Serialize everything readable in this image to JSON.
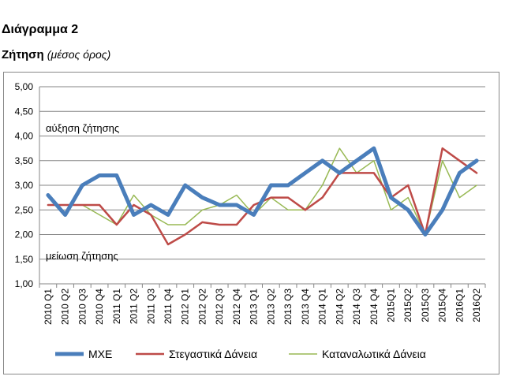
{
  "header": {
    "title": "Διάγραμμα 2",
    "subtitle_main": "Ζήτηση",
    "subtitle_note": "(μέσος όρος)"
  },
  "chart_data": {
    "type": "line",
    "categories": [
      "2010 Q1",
      "2010 Q2",
      "2010 Q3",
      "2010 Q4",
      "2011 Q1",
      "2011 Q2",
      "2011 Q3",
      "2011 Q4",
      "2012 Q1",
      "2012 Q2",
      "2012 Q3",
      "2012 Q4",
      "2013 Q1",
      "2013 Q2",
      "2013 Q3",
      "2013 Q4",
      "2014 Q1",
      "2014 Q2",
      "2014 Q3",
      "2014 Q4",
      "2015Q1",
      "2015Q2",
      "2015Q3",
      "2015Q4",
      "2016Q1",
      "2016Q2"
    ],
    "series": [
      {
        "name": "ΜΧΕ",
        "color": "#4a7ebb",
        "values": [
          2.8,
          2.4,
          3.0,
          3.2,
          3.2,
          2.4,
          2.6,
          2.4,
          3.0,
          2.75,
          2.6,
          2.6,
          2.4,
          3.0,
          3.0,
          3.25,
          3.5,
          3.25,
          3.5,
          3.75,
          2.75,
          2.5,
          2.0,
          2.5,
          3.25,
          3.5
        ]
      },
      {
        "name": "Στεγαστικά Δάνεια",
        "color": "#be4b48",
        "values": [
          2.6,
          2.6,
          2.6,
          2.6,
          2.2,
          2.6,
          2.4,
          1.8,
          2.0,
          2.25,
          2.2,
          2.2,
          2.6,
          2.75,
          2.75,
          2.5,
          2.75,
          3.25,
          3.25,
          3.25,
          2.75,
          3.0,
          2.0,
          3.75,
          3.5,
          3.25
        ]
      },
      {
        "name": "Καταναλωτικά Δάνεια",
        "color": "#98b954",
        "values": [
          2.6,
          2.6,
          2.6,
          2.4,
          2.2,
          2.8,
          2.4,
          2.2,
          2.2,
          2.5,
          2.6,
          2.8,
          2.4,
          2.75,
          2.5,
          2.5,
          3.0,
          3.75,
          3.25,
          3.5,
          2.5,
          2.75,
          2.0,
          3.5,
          2.75,
          3.0
        ]
      }
    ],
    "yticks": [
      "5,00",
      "4,50",
      "4,00",
      "3,50",
      "3,00",
      "2,50",
      "2,00",
      "1,50",
      "1,00"
    ],
    "ylim": [
      1.0,
      5.0
    ],
    "annotations": {
      "top": "αύξηση ζήτησης",
      "bottom": "μείωση ζήτησης"
    },
    "grid": "horizontal",
    "legend_position": "bottom"
  }
}
